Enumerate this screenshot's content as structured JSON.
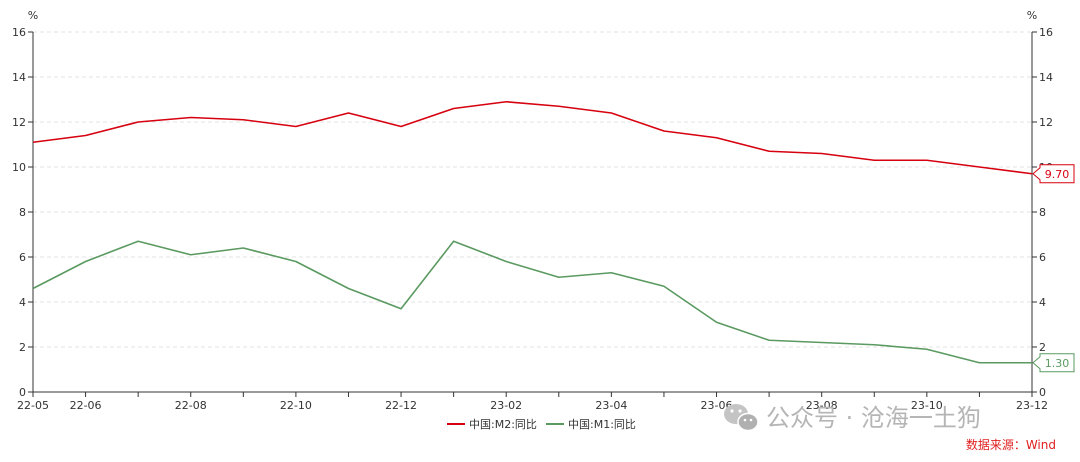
{
  "chart_data": {
    "type": "line",
    "x": [
      "22-05",
      "22-06",
      "22-07",
      "22-08",
      "22-09",
      "22-10",
      "22-11",
      "22-12",
      "23-01",
      "23-02",
      "23-03",
      "23-04",
      "23-05",
      "23-06",
      "23-07",
      "23-08",
      "23-09",
      "23-10",
      "23-11",
      "23-12"
    ],
    "x_tick_labels": [
      "22-05",
      "22-06",
      "22-08",
      "22-10",
      "22-12",
      "23-02",
      "23-04",
      "23-06",
      "23-08",
      "23-10",
      "23-12"
    ],
    "y_ticks": [
      "0",
      "2",
      "4",
      "6",
      "8",
      "10",
      "12",
      "14",
      "16"
    ],
    "ylim": [
      0,
      16
    ],
    "yunit_left": "%",
    "yunit_right": "%",
    "grid": true,
    "legend_position": "bottom",
    "series": [
      {
        "name": "中国:M2:同比",
        "color": "#d7000f",
        "values": [
          11.1,
          11.4,
          12.0,
          12.2,
          12.1,
          11.8,
          12.4,
          11.8,
          12.6,
          12.9,
          12.7,
          12.4,
          11.6,
          11.3,
          10.7,
          10.6,
          10.3,
          10.3,
          10.0,
          9.7
        ],
        "end_label": "9.70"
      },
      {
        "name": "中国:M1:同比",
        "color": "#5a9a60",
        "values": [
          4.6,
          5.8,
          6.7,
          6.1,
          6.4,
          5.8,
          4.6,
          3.7,
          6.7,
          5.8,
          5.1,
          5.3,
          4.7,
          3.1,
          2.3,
          2.2,
          2.1,
          1.9,
          1.3,
          1.3
        ],
        "end_label": "1.30"
      }
    ]
  },
  "watermark": "公众号 · 沧海一土狗",
  "source": "数据来源：Wind",
  "icon": "wechat-icon"
}
